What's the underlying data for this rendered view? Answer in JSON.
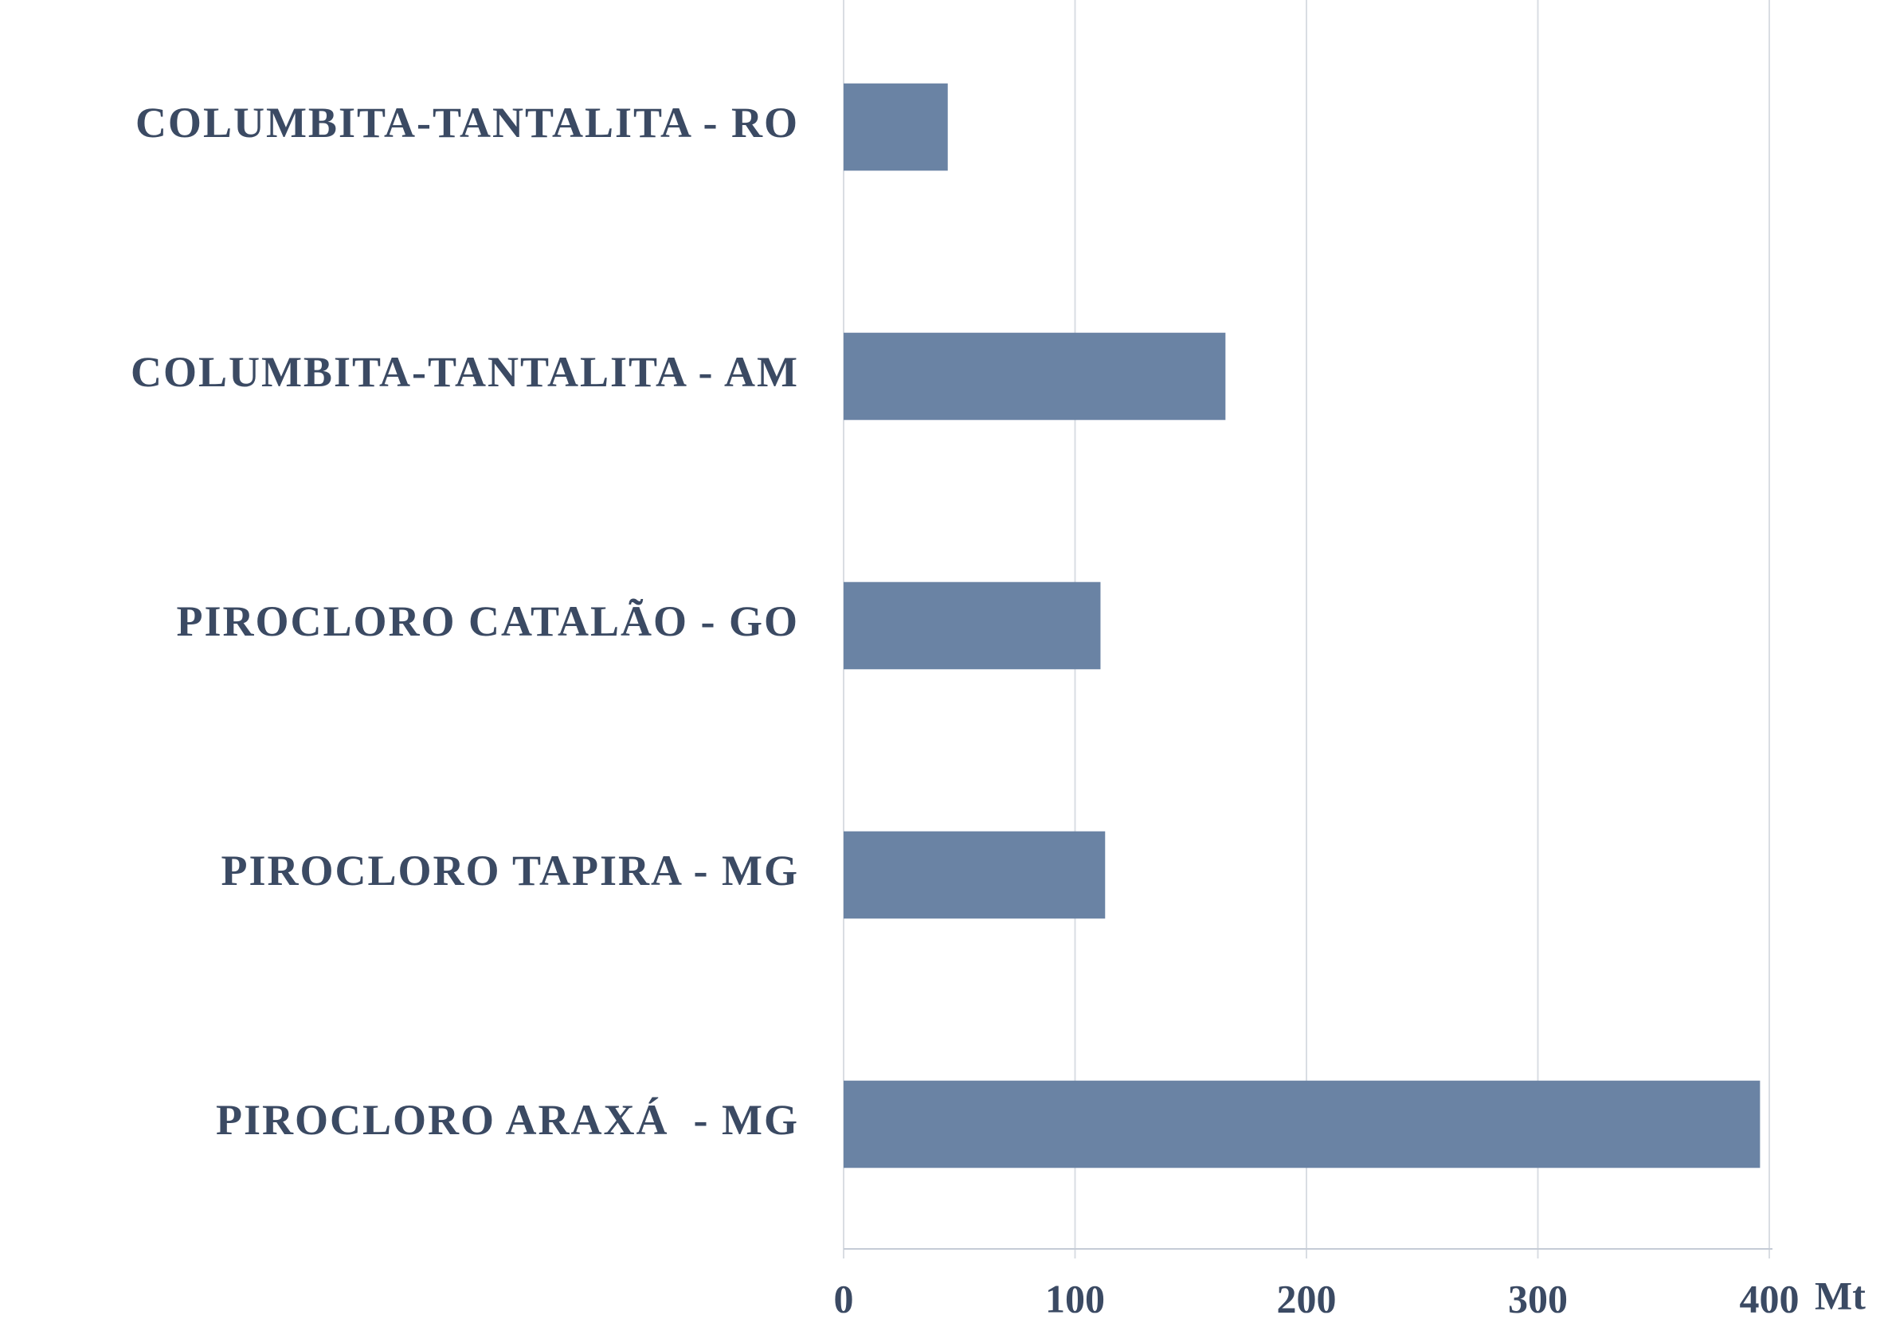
{
  "chart_data": {
    "type": "bar",
    "orientation": "horizontal",
    "categories": [
      "COLUMBITA-TANTALITA - RO",
      "COLUMBITA-TANTALITA - AM",
      "PIROCLORO CATALÃO - GO",
      "PIROCLORO TAPIRA - MG",
      "PIROCLORO ARAXÁ  - MG"
    ],
    "values": [
      45,
      165,
      111,
      113,
      396
    ],
    "color": "#6a83a4",
    "x_label": "Mt",
    "xlim": [
      0,
      400
    ],
    "xticks": [
      0,
      100,
      200,
      300,
      400
    ],
    "grid": true
  }
}
